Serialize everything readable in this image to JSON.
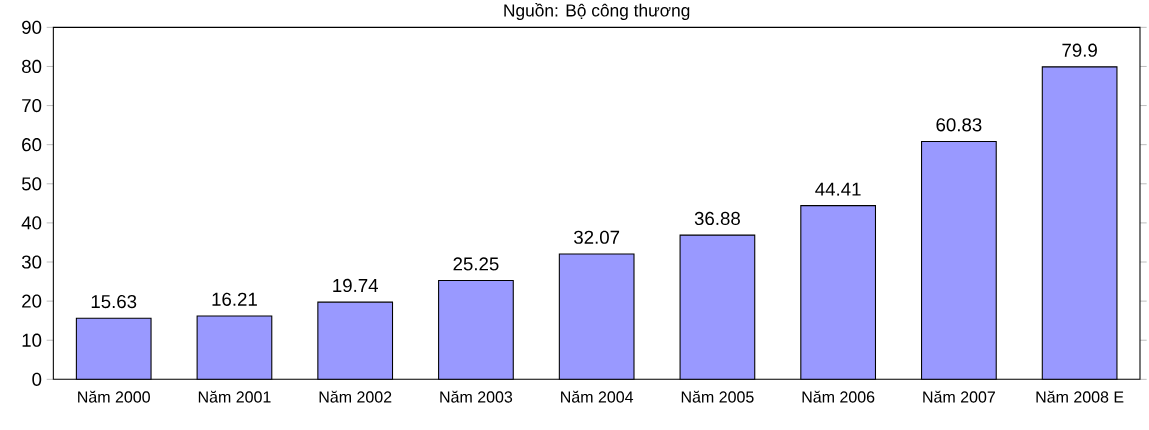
{
  "chart_data": {
    "type": "bar",
    "title": "Nguồn: Bộ công thương",
    "categories": [
      "Năm 2000",
      "Năm 2001",
      "Năm 2002",
      "Năm 2003",
      "Năm 2004",
      "Năm 2005",
      "Năm 2006",
      "Năm 2007",
      "Năm 2008 E"
    ],
    "values": [
      15.63,
      16.21,
      19.74,
      25.25,
      32.07,
      36.88,
      44.41,
      60.83,
      79.9
    ],
    "color": "#9999ff",
    "data_labels": true,
    "ylim": [
      0,
      90
    ],
    "yticks": [
      0,
      10,
      20,
      30,
      40,
      50,
      60,
      70,
      80,
      90
    ]
  }
}
